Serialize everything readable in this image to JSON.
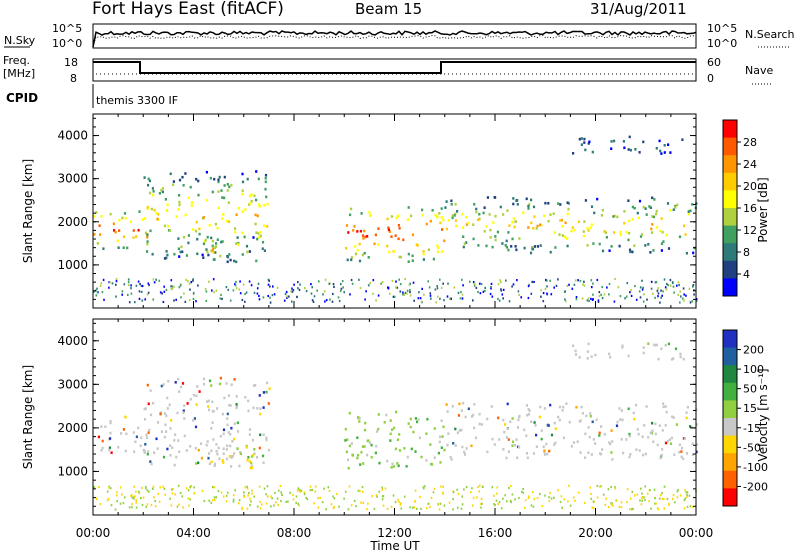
{
  "header": {
    "station": "Fort Hays East (fitACF)",
    "beam": "Beam 15",
    "date": "31/Aug/2011"
  },
  "top_panels": {
    "nsky_label": "N.Sky",
    "nsearch_label": "N.Search",
    "noise_ticks": [
      "10^5",
      "10^0"
    ],
    "freq_label": "Freq.",
    "freq_unit": "[MHz]",
    "freq_ticks": [
      "18",
      "8"
    ],
    "nave_label": "Nave",
    "nave_ticks": [
      "60",
      "0"
    ],
    "cpid_label": "CPID",
    "cpid_value": "themis 3300 IF"
  },
  "colorbars": {
    "power": {
      "label": "Power [dB]",
      "ticks": [
        "28",
        "24",
        "20",
        "16",
        "12",
        "8",
        "4"
      ],
      "colors": [
        "#ff0000",
        "#ff5a00",
        "#ff9600",
        "#ffcc00",
        "#ffff00",
        "#b0d040",
        "#3fa060",
        "#2e7a78",
        "#204080",
        "#0000ff"
      ]
    },
    "velocity": {
      "label": "Velocity [m s⁻¹]",
      "ticks": [
        "200",
        "100",
        "50",
        "15",
        "-15",
        "-50",
        "-100",
        "-200"
      ],
      "colors": [
        "#2030c0",
        "#2060a0",
        "#1e8840",
        "#40b040",
        "#90d040",
        "#c8c8c8",
        "#ffd700",
        "#ffa500",
        "#ff6000",
        "#ff0000"
      ]
    }
  },
  "chart_data": [
    {
      "type": "heatmap",
      "title": "Power",
      "ylabel": "Slant Range [km]",
      "yticks": [
        "4000",
        "3000",
        "2000",
        "1000"
      ],
      "ylim": [
        0,
        4500
      ],
      "xlim": [
        0,
        24
      ],
      "colorbar_label": "Power [dB]",
      "regions": [
        {
          "t0": 0.0,
          "t1": 2.2,
          "r0": 1400,
          "r1": 2300,
          "level": "high"
        },
        {
          "t0": 2.0,
          "t1": 7.0,
          "r0": 1100,
          "r1": 3200,
          "level": "mixed"
        },
        {
          "t0": 4.6,
          "t1": 6.4,
          "r0": 1100,
          "r1": 1700,
          "level": "mixed"
        },
        {
          "t0": 10.0,
          "t1": 14.0,
          "r0": 1100,
          "r1": 2400,
          "level": "high"
        },
        {
          "t0": 14.0,
          "t1": 24.0,
          "r0": 1300,
          "r1": 2600,
          "level": "mixed"
        },
        {
          "t0": 19.0,
          "t1": 23.5,
          "r0": 3600,
          "r1": 4000,
          "level": "low"
        }
      ]
    },
    {
      "type": "heatmap",
      "title": "Velocity",
      "ylabel": "Slant Range [km]",
      "yticks": [
        "4000",
        "3000",
        "2000",
        "1000"
      ],
      "ylim": [
        0,
        4500
      ],
      "xlim": [
        0,
        24
      ],
      "colorbar_label": "Velocity [m s⁻¹]",
      "regions": [
        {
          "t0": 0.0,
          "t1": 2.2,
          "r0": 1400,
          "r1": 2300,
          "level": "near-zero"
        },
        {
          "t0": 2.0,
          "t1": 7.0,
          "r0": 1100,
          "r1": 3200,
          "level": "near-zero"
        },
        {
          "t0": 4.6,
          "t1": 6.4,
          "r0": 1100,
          "r1": 1700,
          "level": "negative"
        },
        {
          "t0": 10.0,
          "t1": 14.0,
          "r0": 1100,
          "r1": 2400,
          "level": "positive"
        },
        {
          "t0": 14.0,
          "t1": 24.0,
          "r0": 1300,
          "r1": 2600,
          "level": "near-zero"
        },
        {
          "t0": 19.0,
          "t1": 23.5,
          "r0": 3600,
          "r1": 4000,
          "level": "near-zero"
        }
      ]
    }
  ],
  "xaxis": {
    "ticks": [
      "00:00",
      "04:00",
      "08:00",
      "12:00",
      "16:00",
      "20:00",
      "00:00"
    ],
    "label": "Time UT"
  }
}
